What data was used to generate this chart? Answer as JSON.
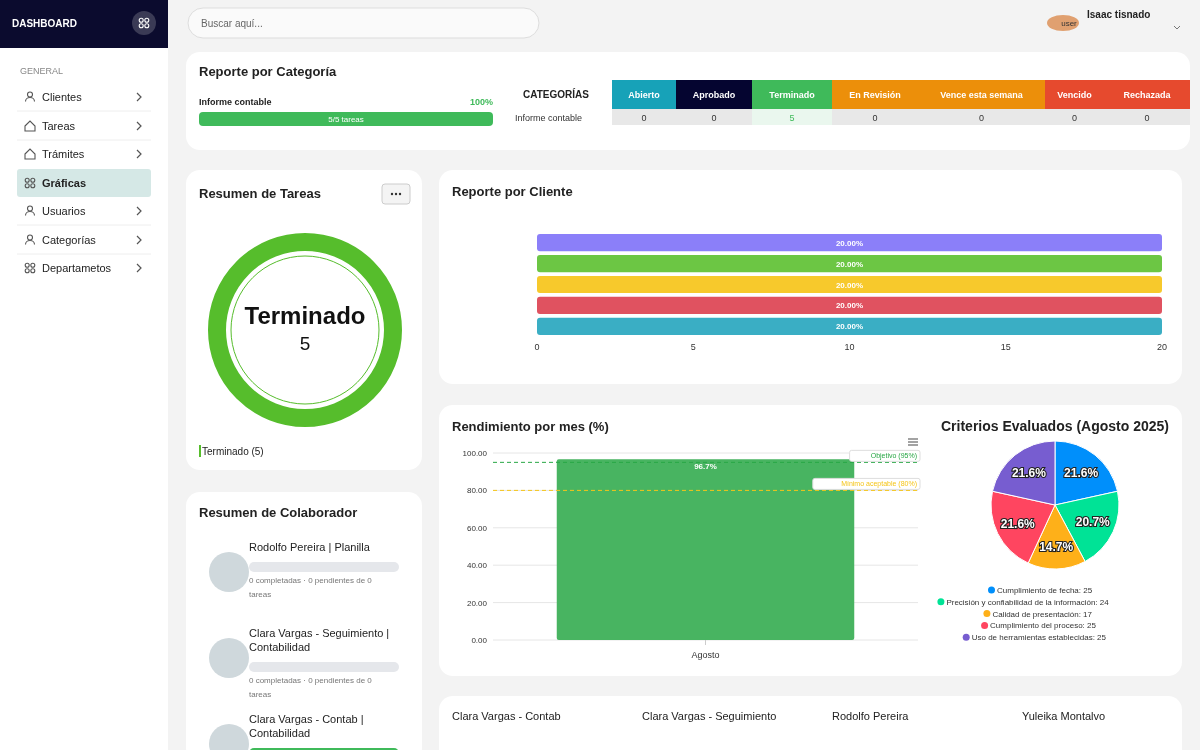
{
  "chart_data": [
    {
      "type": "other",
      "annotations": [
        "DASHBOARD",
        "GENERAL",
        "Clientes",
        "Tareas",
        "Trámites",
        "Gráficas",
        "Usuarios",
        "Categorías",
        "Departametos",
        "Buscar aquí...",
        "user",
        "Isaac tisnado"
      ]
    },
    {
      "type": "other",
      "title": "Reporte por Categoría",
      "annotations": [
        "Informe contable",
        "100%",
        "5/5 tareas",
        "CATEGORÍAS",
        "Abierto",
        "Aprobado",
        "Terminado",
        "En Revisión",
        "Vence esta semana",
        "Vencido",
        "Rechazada",
        "Informe contable",
        "0",
        "0",
        "5",
        "0",
        "0",
        "0",
        "0"
      ]
    },
    {
      "type": "donut",
      "title": "Resumen de Tareas",
      "annotations": [
        "Terminado"
      ],
      "categories": [
        "Terminado (5)"
      ],
      "values": [
        5
      ],
      "colors": [
        "#56bd2c"
      ],
      "data_labels": true,
      "legend": "bottom left"
    },
    {
      "type": "bar",
      "orientation": "horizontal",
      "title": "Reporte por Cliente",
      "categories": [
        null,
        null,
        null,
        null,
        null
      ],
      "values": [
        20,
        20,
        20,
        20,
        20
      ],
      "colors": [
        "#8b7ff9",
        "#6cc644",
        "#f7c92c",
        "#e05260",
        "#3aaec4"
      ],
      "value_labels": [
        "20.00%",
        "20.00%",
        "20.00%",
        "20.00%",
        "20.00%"
      ],
      "xlim": [
        0,
        20
      ],
      "xticks": [
        0,
        5,
        10,
        15,
        20
      ]
    },
    {
      "type": "other",
      "title": "Resumen de Colaborador",
      "annotations": [
        "Rodolfo Pereira | Planilla",
        "0 completadas · 0 pendientes de 0 tareas",
        "Clara Vargas - Seguimiento | Contabilidad",
        "0 completadas · 0 pendientes de 0 tareas",
        "Clara Vargas - Contab | Contabilidad"
      ]
    },
    {
      "type": "bar",
      "title": "Rendimiento por mes (%)",
      "categories": [
        "Agosto"
      ],
      "values": [
        96.7
      ],
      "color": "#48b461",
      "value_labels": [
        "96.7%"
      ],
      "ylim": [
        0,
        100
      ],
      "yticks": [
        {
          "value": 0,
          "label": "0.00"
        },
        {
          "value": 20,
          "label": "20.00"
        },
        {
          "value": 40,
          "label": "40.00"
        },
        {
          "value": 60,
          "label": "60.00"
        },
        {
          "value": 80,
          "label": "80.00"
        },
        {
          "value": 100,
          "label": "100.00"
        }
      ],
      "grid": "y",
      "ref_lines": [
        {
          "axis": "y",
          "value": 95,
          "label": "Objetivo (95%)",
          "color": "#28a745",
          "line_style": "dashed"
        },
        {
          "axis": "y",
          "value": 80,
          "label": "Mínimo aceptable (80%)",
          "color": "#f5c518",
          "line_style": "dashed"
        }
      ]
    },
    {
      "type": "pie",
      "title": "Criterios Evaluados (Agosto 2025)",
      "categories": [
        "Cumplimiento de fecha: 25",
        "Precisión y confiabilidad de la información: 24",
        "Calidad de presentación: 17",
        "Cumplimiento del proceso: 25",
        "Uso de herramientas establecidas: 25"
      ],
      "values": [
        21.6,
        20.7,
        14.7,
        21.6,
        21.6
      ],
      "colors": [
        "#008ffb",
        "#00e396",
        "#feb019",
        "#ff4560",
        "#775dd0"
      ],
      "value_labels": [
        "21.6%",
        "20.7%",
        "14.7%",
        "21.6%",
        "21.6%"
      ],
      "legend": "bottom"
    },
    {
      "type": "other",
      "annotations": [
        "Clara Vargas - Contab",
        "Clara Vargas - Seguimiento",
        "Rodolfo Pereira",
        "Yuleika Montalvo"
      ]
    }
  ]
}
